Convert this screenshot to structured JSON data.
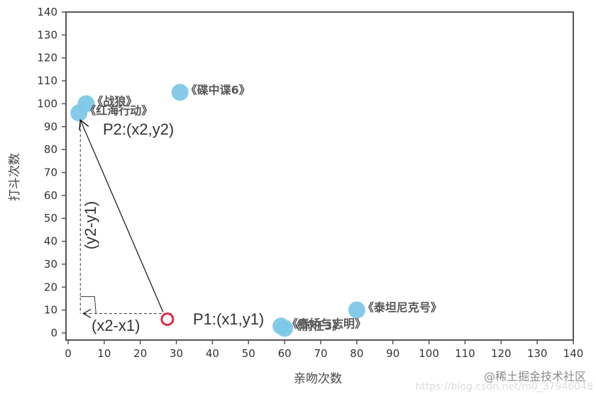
{
  "chart_data": {
    "type": "scatter",
    "title": "",
    "xlabel": "亲吻次数",
    "ylabel": "打斗次数",
    "xlim": [
      0,
      140
    ],
    "ylim": [
      0,
      140
    ],
    "xticks": [
      0,
      10,
      20,
      30,
      40,
      50,
      60,
      70,
      80,
      90,
      100,
      110,
      120,
      130,
      140
    ],
    "yticks": [
      0,
      10,
      20,
      30,
      40,
      50,
      60,
      70,
      80,
      90,
      100,
      110,
      120,
      130,
      140
    ],
    "grid": false,
    "marker_color": "#7ec8e8",
    "points": [
      {
        "label": "《战狼》",
        "x": 5,
        "y": 100
      },
      {
        "label": "《红海行动》",
        "x": 3,
        "y": 96
      },
      {
        "label": "《碟中谍6》",
        "x": 31,
        "y": 105
      },
      {
        "label": "《泰坦尼克号》",
        "x": 80,
        "y": 10
      },
      {
        "label": "《前任3》",
        "x": 60,
        "y": 2
      },
      {
        "label": "《春娇与志明》",
        "x": 59,
        "y": 3
      }
    ],
    "annotations": {
      "p1_label": "P1:(x1,y1)",
      "p2_label": "P2:(x2,y2)",
      "dx_label": "(x2-x1)",
      "dy_label": "(y2-y1)",
      "p1": {
        "x": 27.5,
        "y": 6
      },
      "p2": {
        "x": 3,
        "y": 96
      },
      "p1_marker_color": "#d9304a"
    }
  },
  "watermark": {
    "text": "@稀土掘金技术社区",
    "url": "https://blog.csdn.net/m0_37946048"
  }
}
